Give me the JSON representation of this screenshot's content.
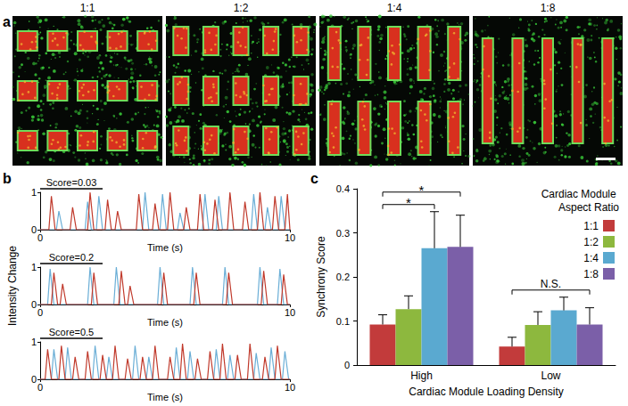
{
  "chart_data": [
    {
      "type": "image",
      "title": "a",
      "panels": [
        "1:1",
        "1:2",
        "1:4",
        "1:8"
      ]
    },
    {
      "type": "line",
      "title": "b",
      "annotation": "Score=0.03",
      "xlabel": "Time (s)",
      "xlim": [
        0,
        10
      ],
      "xticks": [
        0,
        10
      ],
      "ylim": [
        0,
        1
      ],
      "yticks": [
        0,
        1
      ],
      "grid": false,
      "series": [
        {
          "color": "#6aaed6",
          "values": [
            [
              0,
              0
            ],
            [
              0.65,
              0
            ],
            [
              0.75,
              0.5
            ],
            [
              0.9,
              0
            ],
            [
              1.8,
              0
            ],
            [
              1.9,
              0.75
            ],
            [
              2.05,
              0
            ],
            [
              2.25,
              0
            ],
            [
              2.35,
              0.9
            ],
            [
              2.5,
              0
            ],
            [
              4.1,
              0
            ],
            [
              4.2,
              1.0
            ],
            [
              4.35,
              0
            ],
            [
              4.8,
              0
            ],
            [
              4.9,
              0.95
            ],
            [
              5.05,
              0
            ],
            [
              5.5,
              0
            ],
            [
              5.6,
              0.45
            ],
            [
              5.75,
              0
            ],
            [
              6.5,
              0
            ],
            [
              6.6,
              0.95
            ],
            [
              6.75,
              0
            ],
            [
              7.05,
              0
            ],
            [
              7.15,
              0.9
            ],
            [
              7.3,
              0
            ],
            [
              8.45,
              0
            ],
            [
              8.55,
              0.95
            ],
            [
              8.7,
              0
            ],
            [
              9.0,
              0
            ],
            [
              9.1,
              0.6
            ],
            [
              9.25,
              0
            ],
            [
              9.55,
              0
            ],
            [
              9.65,
              0.9
            ],
            [
              9.8,
              0
            ],
            [
              10,
              0
            ]
          ]
        },
        {
          "color": "#c0392b",
          "values": [
            [
              0,
              0
            ],
            [
              0.35,
              0
            ],
            [
              0.45,
              0.9
            ],
            [
              0.6,
              0
            ],
            [
              1.2,
              0
            ],
            [
              1.3,
              0.6
            ],
            [
              1.45,
              0
            ],
            [
              1.9,
              0
            ],
            [
              2.0,
              1.0
            ],
            [
              2.15,
              0
            ],
            [
              2.6,
              0
            ],
            [
              2.7,
              0.8
            ],
            [
              2.85,
              0
            ],
            [
              3.0,
              0
            ],
            [
              3.1,
              0.5
            ],
            [
              3.25,
              0
            ],
            [
              3.85,
              0
            ],
            [
              3.95,
              0.95
            ],
            [
              4.1,
              0
            ],
            [
              4.5,
              0
            ],
            [
              4.6,
              0.7
            ],
            [
              4.75,
              0
            ],
            [
              5.1,
              0
            ],
            [
              5.2,
              1.0
            ],
            [
              5.35,
              0
            ],
            [
              5.75,
              0
            ],
            [
              5.85,
              0.6
            ],
            [
              6.0,
              0
            ],
            [
              6.3,
              0
            ],
            [
              6.4,
              0.95
            ],
            [
              6.55,
              0
            ],
            [
              6.9,
              0
            ],
            [
              7.0,
              0.8
            ],
            [
              7.15,
              0
            ],
            [
              7.5,
              0
            ],
            [
              7.6,
              1.0
            ],
            [
              7.75,
              0
            ],
            [
              8.1,
              0
            ],
            [
              8.2,
              0.75
            ],
            [
              8.35,
              0
            ],
            [
              8.7,
              0
            ],
            [
              8.8,
              1.0
            ],
            [
              8.95,
              0
            ],
            [
              9.3,
              0
            ],
            [
              9.4,
              0.9
            ],
            [
              9.55,
              0
            ],
            [
              9.8,
              0
            ],
            [
              9.9,
              0.95
            ],
            [
              10,
              0
            ]
          ]
        }
      ]
    },
    {
      "type": "line",
      "annotation": "Score=0.2",
      "xlabel": "Time (s)",
      "ylabel": "Intensity Change",
      "xlim": [
        0,
        10
      ],
      "xticks": [
        0,
        10
      ],
      "ylim": [
        0,
        1
      ],
      "yticks": [
        0,
        1
      ],
      "grid": false,
      "series": [
        {
          "color": "#6aaed6",
          "values": [
            [
              0,
              0
            ],
            [
              0.3,
              0
            ],
            [
              0.4,
              0.95
            ],
            [
              0.55,
              0
            ],
            [
              1.9,
              0
            ],
            [
              2.0,
              1.0
            ],
            [
              2.15,
              0
            ],
            [
              2.95,
              0
            ],
            [
              3.05,
              1.0
            ],
            [
              3.2,
              0
            ],
            [
              4.7,
              0
            ],
            [
              4.8,
              1.0
            ],
            [
              4.95,
              0
            ],
            [
              6.0,
              0
            ],
            [
              6.1,
              1.0
            ],
            [
              6.25,
              0
            ],
            [
              7.3,
              0
            ],
            [
              7.4,
              1.0
            ],
            [
              7.55,
              0
            ],
            [
              8.7,
              0
            ],
            [
              8.8,
              1.0
            ],
            [
              8.95,
              0
            ],
            [
              9.5,
              0
            ],
            [
              9.6,
              0.95
            ],
            [
              9.75,
              0
            ],
            [
              10,
              0
            ]
          ]
        },
        {
          "color": "#c0392b",
          "values": [
            [
              0,
              0
            ],
            [
              0.45,
              0
            ],
            [
              0.55,
              0.85
            ],
            [
              0.7,
              0
            ],
            [
              0.8,
              0
            ],
            [
              0.9,
              0.55
            ],
            [
              1.05,
              0
            ],
            [
              2.05,
              0
            ],
            [
              2.15,
              0.85
            ],
            [
              2.3,
              0
            ],
            [
              3.15,
              0
            ],
            [
              3.25,
              0.9
            ],
            [
              3.4,
              0
            ],
            [
              3.5,
              0
            ],
            [
              3.6,
              0.5
            ],
            [
              3.75,
              0
            ],
            [
              4.85,
              0
            ],
            [
              4.95,
              0.85
            ],
            [
              5.1,
              0
            ],
            [
              6.15,
              0
            ],
            [
              6.25,
              0.85
            ],
            [
              6.4,
              0
            ],
            [
              7.45,
              0
            ],
            [
              7.55,
              0.85
            ],
            [
              7.7,
              0
            ],
            [
              8.85,
              0
            ],
            [
              8.95,
              0.9
            ],
            [
              9.1,
              0
            ],
            [
              9.65,
              0
            ],
            [
              9.75,
              0.8
            ],
            [
              9.9,
              0
            ],
            [
              10,
              0
            ]
          ]
        }
      ]
    },
    {
      "type": "line",
      "annotation": "Score=0.5",
      "xlabel": "Time (s)",
      "xlim": [
        0,
        10
      ],
      "xticks": [
        0,
        10
      ],
      "ylim": [
        0,
        1
      ],
      "yticks": [
        0,
        1
      ],
      "grid": false,
      "series": [
        {
          "color": "#6aaed6",
          "values": [
            [
              0,
              0
            ],
            [
              0.45,
              0
            ],
            [
              0.55,
              0.8
            ],
            [
              0.7,
              0
            ],
            [
              1.0,
              0
            ],
            [
              1.1,
              0.85
            ],
            [
              1.25,
              0
            ],
            [
              2.1,
              0
            ],
            [
              2.2,
              0.9
            ],
            [
              2.35,
              0
            ],
            [
              2.65,
              0
            ],
            [
              2.75,
              0.6
            ],
            [
              2.9,
              0
            ],
            [
              3.7,
              0
            ],
            [
              3.8,
              0.9
            ],
            [
              3.95,
              0
            ],
            [
              4.25,
              0
            ],
            [
              4.35,
              0.6
            ],
            [
              4.5,
              0
            ],
            [
              5.35,
              0
            ],
            [
              5.45,
              0.85
            ],
            [
              5.6,
              0
            ],
            [
              5.9,
              0
            ],
            [
              6.0,
              0.75
            ],
            [
              6.15,
              0
            ],
            [
              6.95,
              0
            ],
            [
              7.05,
              0.8
            ],
            [
              7.2,
              0
            ],
            [
              7.5,
              0
            ],
            [
              7.6,
              0.65
            ],
            [
              7.75,
              0
            ],
            [
              8.55,
              0
            ],
            [
              8.65,
              0.7
            ],
            [
              8.8,
              0
            ],
            [
              9.15,
              0
            ],
            [
              9.25,
              0.85
            ],
            [
              9.4,
              0
            ],
            [
              9.7,
              0
            ],
            [
              9.8,
              0.75
            ],
            [
              9.95,
              0
            ],
            [
              10,
              0
            ]
          ]
        },
        {
          "color": "#c0392b",
          "values": [
            [
              0,
              0
            ],
            [
              0.2,
              0
            ],
            [
              0.3,
              0.8
            ],
            [
              0.45,
              0
            ],
            [
              0.75,
              0
            ],
            [
              0.85,
              0.9
            ],
            [
              1.0,
              0
            ],
            [
              1.3,
              0
            ],
            [
              1.4,
              0.6
            ],
            [
              1.55,
              0
            ],
            [
              1.8,
              0
            ],
            [
              1.9,
              0.75
            ],
            [
              2.05,
              0
            ],
            [
              2.4,
              0
            ],
            [
              2.5,
              0.65
            ],
            [
              2.65,
              0
            ],
            [
              2.9,
              0
            ],
            [
              3.0,
              0.9
            ],
            [
              3.15,
              0
            ],
            [
              3.4,
              0
            ],
            [
              3.5,
              0.55
            ],
            [
              3.65,
              0
            ],
            [
              4.0,
              0
            ],
            [
              4.1,
              0.6
            ],
            [
              4.25,
              0
            ],
            [
              4.5,
              0
            ],
            [
              4.6,
              0.9
            ],
            [
              4.75,
              0
            ],
            [
              5.1,
              0
            ],
            [
              5.2,
              0.6
            ],
            [
              5.35,
              0
            ],
            [
              5.6,
              0
            ],
            [
              5.7,
              0.95
            ],
            [
              5.85,
              0
            ],
            [
              6.2,
              0
            ],
            [
              6.3,
              0.55
            ],
            [
              6.45,
              0
            ],
            [
              6.7,
              0
            ],
            [
              6.8,
              0.75
            ],
            [
              6.95,
              0
            ],
            [
              7.2,
              0
            ],
            [
              7.3,
              0.95
            ],
            [
              7.45,
              0
            ],
            [
              7.8,
              0
            ],
            [
              7.9,
              0.65
            ],
            [
              8.05,
              0
            ],
            [
              8.3,
              0
            ],
            [
              8.4,
              0.95
            ],
            [
              8.55,
              0
            ],
            [
              8.9,
              0
            ],
            [
              9.0,
              0.6
            ],
            [
              9.15,
              0
            ],
            [
              9.4,
              0
            ],
            [
              9.5,
              0.9
            ],
            [
              9.65,
              0
            ],
            [
              10,
              0
            ]
          ]
        }
      ]
    },
    {
      "type": "bar",
      "title": "c",
      "categories": [
        "High",
        "Low"
      ],
      "xlabel": "Cardiac Module Loading Density",
      "ylabel": "Synchrony Score",
      "ylim": [
        0,
        0.4
      ],
      "yticks": [
        0,
        0.1,
        0.2,
        0.3,
        0.4
      ],
      "grid": false,
      "legend": "top-right",
      "legend_title": "Cardiac Module Aspect Ratio",
      "series": [
        {
          "name": "1:1",
          "color": "#c23b3b",
          "values": [
            0.092,
            0.042
          ],
          "errors": [
            0.022,
            0.021
          ]
        },
        {
          "name": "1:2",
          "color": "#8db83e",
          "values": [
            0.127,
            0.091
          ],
          "errors": [
            0.03,
            0.03
          ]
        },
        {
          "name": "1:4",
          "color": "#5aa9d0",
          "values": [
            0.265,
            0.124
          ],
          "errors": [
            0.083,
            0.03
          ]
        },
        {
          "name": "1:8",
          "color": "#7b5fa8",
          "values": [
            0.268,
            0.092
          ],
          "errors": [
            0.072,
            0.038
          ]
        }
      ],
      "annotations": [
        {
          "text": "*",
          "category": "High",
          "series": [
            "1:1",
            "1:4"
          ]
        },
        {
          "text": "*",
          "category": "High",
          "series": [
            "1:1",
            "1:8"
          ]
        },
        {
          "text": "N.S.",
          "category": "Low",
          "series": [
            "1:1",
            "1:8"
          ]
        }
      ]
    }
  ]
}
